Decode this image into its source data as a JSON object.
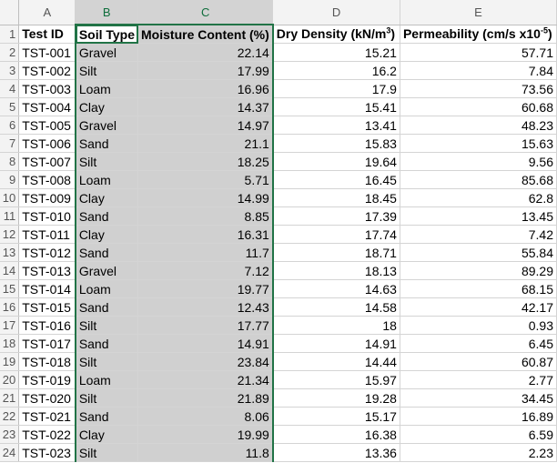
{
  "columns": [
    "A",
    "B",
    "C",
    "D",
    "E"
  ],
  "header_row": {
    "row_number": "1",
    "test_id": "Test ID",
    "soil_type": "Soil Type",
    "moisture": "Moisture Content (%)",
    "dry_density_prefix": "Dry Density (kN/m",
    "dry_density_sup": "3",
    "dry_density_suffix": ")",
    "permeability_prefix": "Permeability (cm/s x10",
    "permeability_sup": "-5",
    "permeability_suffix": ")"
  },
  "rows": [
    {
      "n": "2",
      "id": "TST-001",
      "soil": "Gravel",
      "moisture": "22.14",
      "density": "15.21",
      "perm": "57.71"
    },
    {
      "n": "3",
      "id": "TST-002",
      "soil": "Silt",
      "moisture": "17.99",
      "density": "16.2",
      "perm": "7.84"
    },
    {
      "n": "4",
      "id": "TST-003",
      "soil": "Loam",
      "moisture": "16.96",
      "density": "17.9",
      "perm": "73.56"
    },
    {
      "n": "5",
      "id": "TST-004",
      "soil": "Clay",
      "moisture": "14.37",
      "density": "15.41",
      "perm": "60.68"
    },
    {
      "n": "6",
      "id": "TST-005",
      "soil": "Gravel",
      "moisture": "14.97",
      "density": "13.41",
      "perm": "48.23"
    },
    {
      "n": "7",
      "id": "TST-006",
      "soil": "Sand",
      "moisture": "21.1",
      "density": "15.83",
      "perm": "15.63"
    },
    {
      "n": "8",
      "id": "TST-007",
      "soil": "Silt",
      "moisture": "18.25",
      "density": "19.64",
      "perm": "9.56"
    },
    {
      "n": "9",
      "id": "TST-008",
      "soil": "Loam",
      "moisture": "5.71",
      "density": "16.45",
      "perm": "85.68"
    },
    {
      "n": "10",
      "id": "TST-009",
      "soil": "Clay",
      "moisture": "14.99",
      "density": "18.45",
      "perm": "62.8"
    },
    {
      "n": "11",
      "id": "TST-010",
      "soil": "Sand",
      "moisture": "8.85",
      "density": "17.39",
      "perm": "13.45"
    },
    {
      "n": "12",
      "id": "TST-011",
      "soil": "Clay",
      "moisture": "16.31",
      "density": "17.74",
      "perm": "7.42"
    },
    {
      "n": "13",
      "id": "TST-012",
      "soil": "Sand",
      "moisture": "11.7",
      "density": "18.71",
      "perm": "55.84"
    },
    {
      "n": "14",
      "id": "TST-013",
      "soil": "Gravel",
      "moisture": "7.12",
      "density": "18.13",
      "perm": "89.29"
    },
    {
      "n": "15",
      "id": "TST-014",
      "soil": "Loam",
      "moisture": "19.77",
      "density": "14.63",
      "perm": "68.15"
    },
    {
      "n": "16",
      "id": "TST-015",
      "soil": "Sand",
      "moisture": "12.43",
      "density": "14.58",
      "perm": "42.17"
    },
    {
      "n": "17",
      "id": "TST-016",
      "soil": "Silt",
      "moisture": "17.77",
      "density": "18",
      "perm": "0.93"
    },
    {
      "n": "18",
      "id": "TST-017",
      "soil": "Sand",
      "moisture": "14.91",
      "density": "14.91",
      "perm": "6.45"
    },
    {
      "n": "19",
      "id": "TST-018",
      "soil": "Silt",
      "moisture": "23.84",
      "density": "14.44",
      "perm": "60.87"
    },
    {
      "n": "20",
      "id": "TST-019",
      "soil": "Loam",
      "moisture": "21.34",
      "density": "15.97",
      "perm": "2.77"
    },
    {
      "n": "21",
      "id": "TST-020",
      "soil": "Silt",
      "moisture": "21.89",
      "density": "19.28",
      "perm": "34.45"
    },
    {
      "n": "22",
      "id": "TST-021",
      "soil": "Sand",
      "moisture": "8.06",
      "density": "15.17",
      "perm": "16.89"
    },
    {
      "n": "23",
      "id": "TST-022",
      "soil": "Clay",
      "moisture": "19.99",
      "density": "16.38",
      "perm": "6.59"
    },
    {
      "n": "24",
      "id": "TST-023",
      "soil": "Silt",
      "moisture": "11.8",
      "density": "13.36",
      "perm": "2.23"
    }
  ],
  "colors": {
    "selection_border": "#217346",
    "selection_fill": "#d0d0d0",
    "header_fill": "#f3f3f3"
  }
}
